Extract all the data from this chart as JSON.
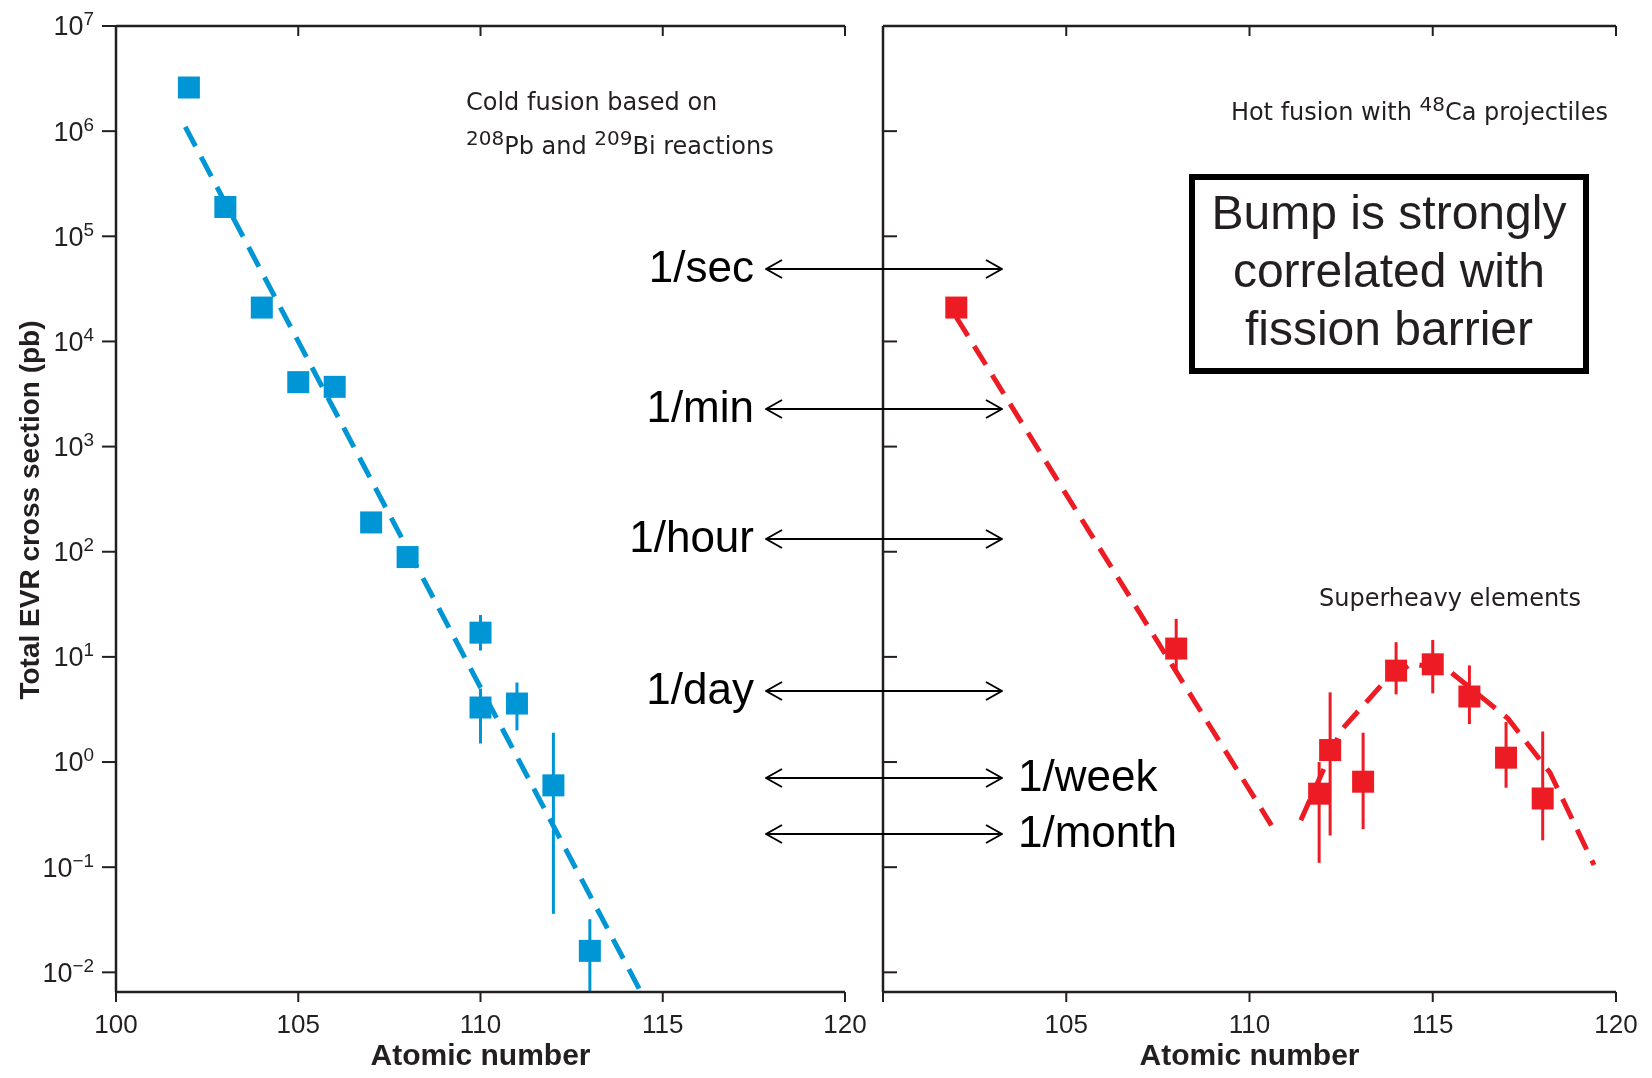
{
  "chart_data": [
    {
      "type": "scatter",
      "xlabel": "Atomic number",
      "ylabel": "Total EVR cross section (pb)",
      "log": "y",
      "xlim": [
        100,
        120
      ],
      "xticks": [
        100,
        105,
        110,
        115,
        120
      ],
      "ylim": [
        0.0065,
        10000000
      ],
      "yticks": [
        {
          "value": 0.01,
          "label": "10$^{−2}$"
        },
        {
          "value": 0.1,
          "label": "10$^{−1}$"
        },
        {
          "value": 1,
          "label": "10$^{0}$"
        },
        {
          "value": 10,
          "label": "10$^{1}$"
        },
        {
          "value": 100,
          "label": "10$^{2}$"
        },
        {
          "value": 1000,
          "label": "10$^{3}$"
        },
        {
          "value": 10000,
          "label": "10$^{4}$"
        },
        {
          "value": 100000,
          "label": "10$^{5}$"
        },
        {
          "value": 1000000,
          "label": "10$^{6}$"
        },
        {
          "value": 10000000,
          "label": "10$^{7}$"
        }
      ],
      "series": [
        {
          "color": "#0096d6",
          "marker": "square",
          "x": [
            102,
            103,
            104,
            105,
            106,
            107,
            108,
            110,
            110,
            111,
            112,
            113
          ],
          "values": [
            2600000,
            190000,
            21000,
            4100,
            3700,
            190,
            89,
            17,
            3.3,
            3.6,
            0.6,
            0.016
          ],
          "errors": [
            null,
            null,
            null,
            null,
            null,
            null,
            null,
            [
              11.5,
              25
            ],
            [
              1.5,
              5
            ],
            [
              2,
              5.7
            ],
            [
              0.036,
              1.9
            ],
            [
              0.0065,
              0.032
            ]
          ]
        },
        {
          "type": "line",
          "color": "#0096d6",
          "marker": "none",
          "line_style": "dashed",
          "x": [
            101.9,
            114.4
          ],
          "values": [
            1100000,
            0.0065
          ]
        }
      ],
      "annotations": [
        "Cold fusion based on\n$^{208}$Pb and $^{209}$Bi reactions",
        "1/sec",
        "1/min",
        "1/hour",
        "1/day",
        "1/week",
        "1/month"
      ]
    },
    {
      "type": "scatter",
      "xlabel": "Atomic number",
      "log": "y",
      "tick_labels": "x",
      "xlim": [
        100,
        120
      ],
      "xticks": [
        {
          "value": 100,
          "label": null
        },
        105,
        110,
        115,
        120
      ],
      "ylim": [
        0.0065,
        10000000
      ],
      "yticks": [
        0.01,
        0.1,
        1,
        10,
        100,
        1000,
        10000,
        100000,
        1000000,
        10000000
      ],
      "series": [
        {
          "color": "#ed1c24",
          "marker": "square",
          "x": [
            102,
            108,
            111.9,
            112.2,
            113.1,
            114,
            115,
            116,
            117,
            118
          ],
          "values": [
            21000,
            12,
            0.5,
            1.3,
            0.65,
            7.4,
            8.5,
            4.2,
            1.1,
            0.45
          ],
          "errors": [
            null,
            [
              6.9,
              23
            ],
            [
              0.11,
              1.0
            ],
            [
              0.2,
              4.6
            ],
            [
              0.23,
              1.9
            ],
            [
              4.4,
              13.8
            ],
            [
              4.5,
              14.5
            ],
            [
              2.3,
              8.3
            ],
            [
              0.57,
              2.4
            ],
            [
              0.18,
              1.95
            ]
          ]
        },
        {
          "type": "line",
          "color": "#ed1c24",
          "marker": "none",
          "line_style": "dashed",
          "x": [
            102,
            110.6,
            111,
            111.4,
            112.5,
            113.6,
            114.4,
            115.4,
            117.05,
            118.2,
            119.4
          ],
          "values": [
            17000,
            0.25,
            null,
            0.28,
            2.0,
            5.4,
            8.6,
            7.6,
            2.6,
            0.79,
            0.105
          ]
        }
      ],
      "annotations": [
        "Hot fusion with $^{48}$Ca projectiles",
        "Bump is strongly\ncorrelated with\nfission barrier",
        "Superheavy elements"
      ]
    }
  ]
}
